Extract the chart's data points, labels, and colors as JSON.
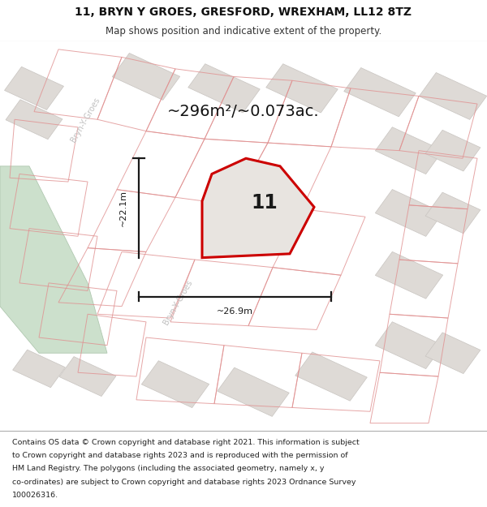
{
  "title": "11, BRYN Y GROES, GRESFORD, WREXHAM, LL12 8TZ",
  "subtitle": "Map shows position and indicative extent of the property.",
  "footer_lines": [
    "Contains OS data © Crown copyright and database right 2021. This information is subject",
    "to Crown copyright and database rights 2023 and is reproduced with the permission of",
    "HM Land Registry. The polygons (including the associated geometry, namely x, y",
    "co-ordinates) are subject to Crown copyright and database rights 2023 Ordnance Survey",
    "100026316."
  ],
  "area_label": "~296m²/~0.073ac.",
  "width_label": "~26.9m",
  "height_label": "~22.1m",
  "plot_number": "11",
  "map_bg": "#f2eeea",
  "building_fill": "#dedad6",
  "building_edge": "#c8c4c0",
  "plot_fill": "#e8e4e0",
  "plot_edge": "#cc0000",
  "pink_edge": "#e09090",
  "dim_color": "#1a1a1a",
  "road_color": "#ffffff",
  "green_fill": "#cce0cc",
  "green_edge": "#b0c8b0",
  "road_label_color": "#c0c0c0",
  "title_fontsize": 10,
  "subtitle_fontsize": 8.5,
  "footer_fontsize": 6.8,
  "area_fontsize": 14
}
